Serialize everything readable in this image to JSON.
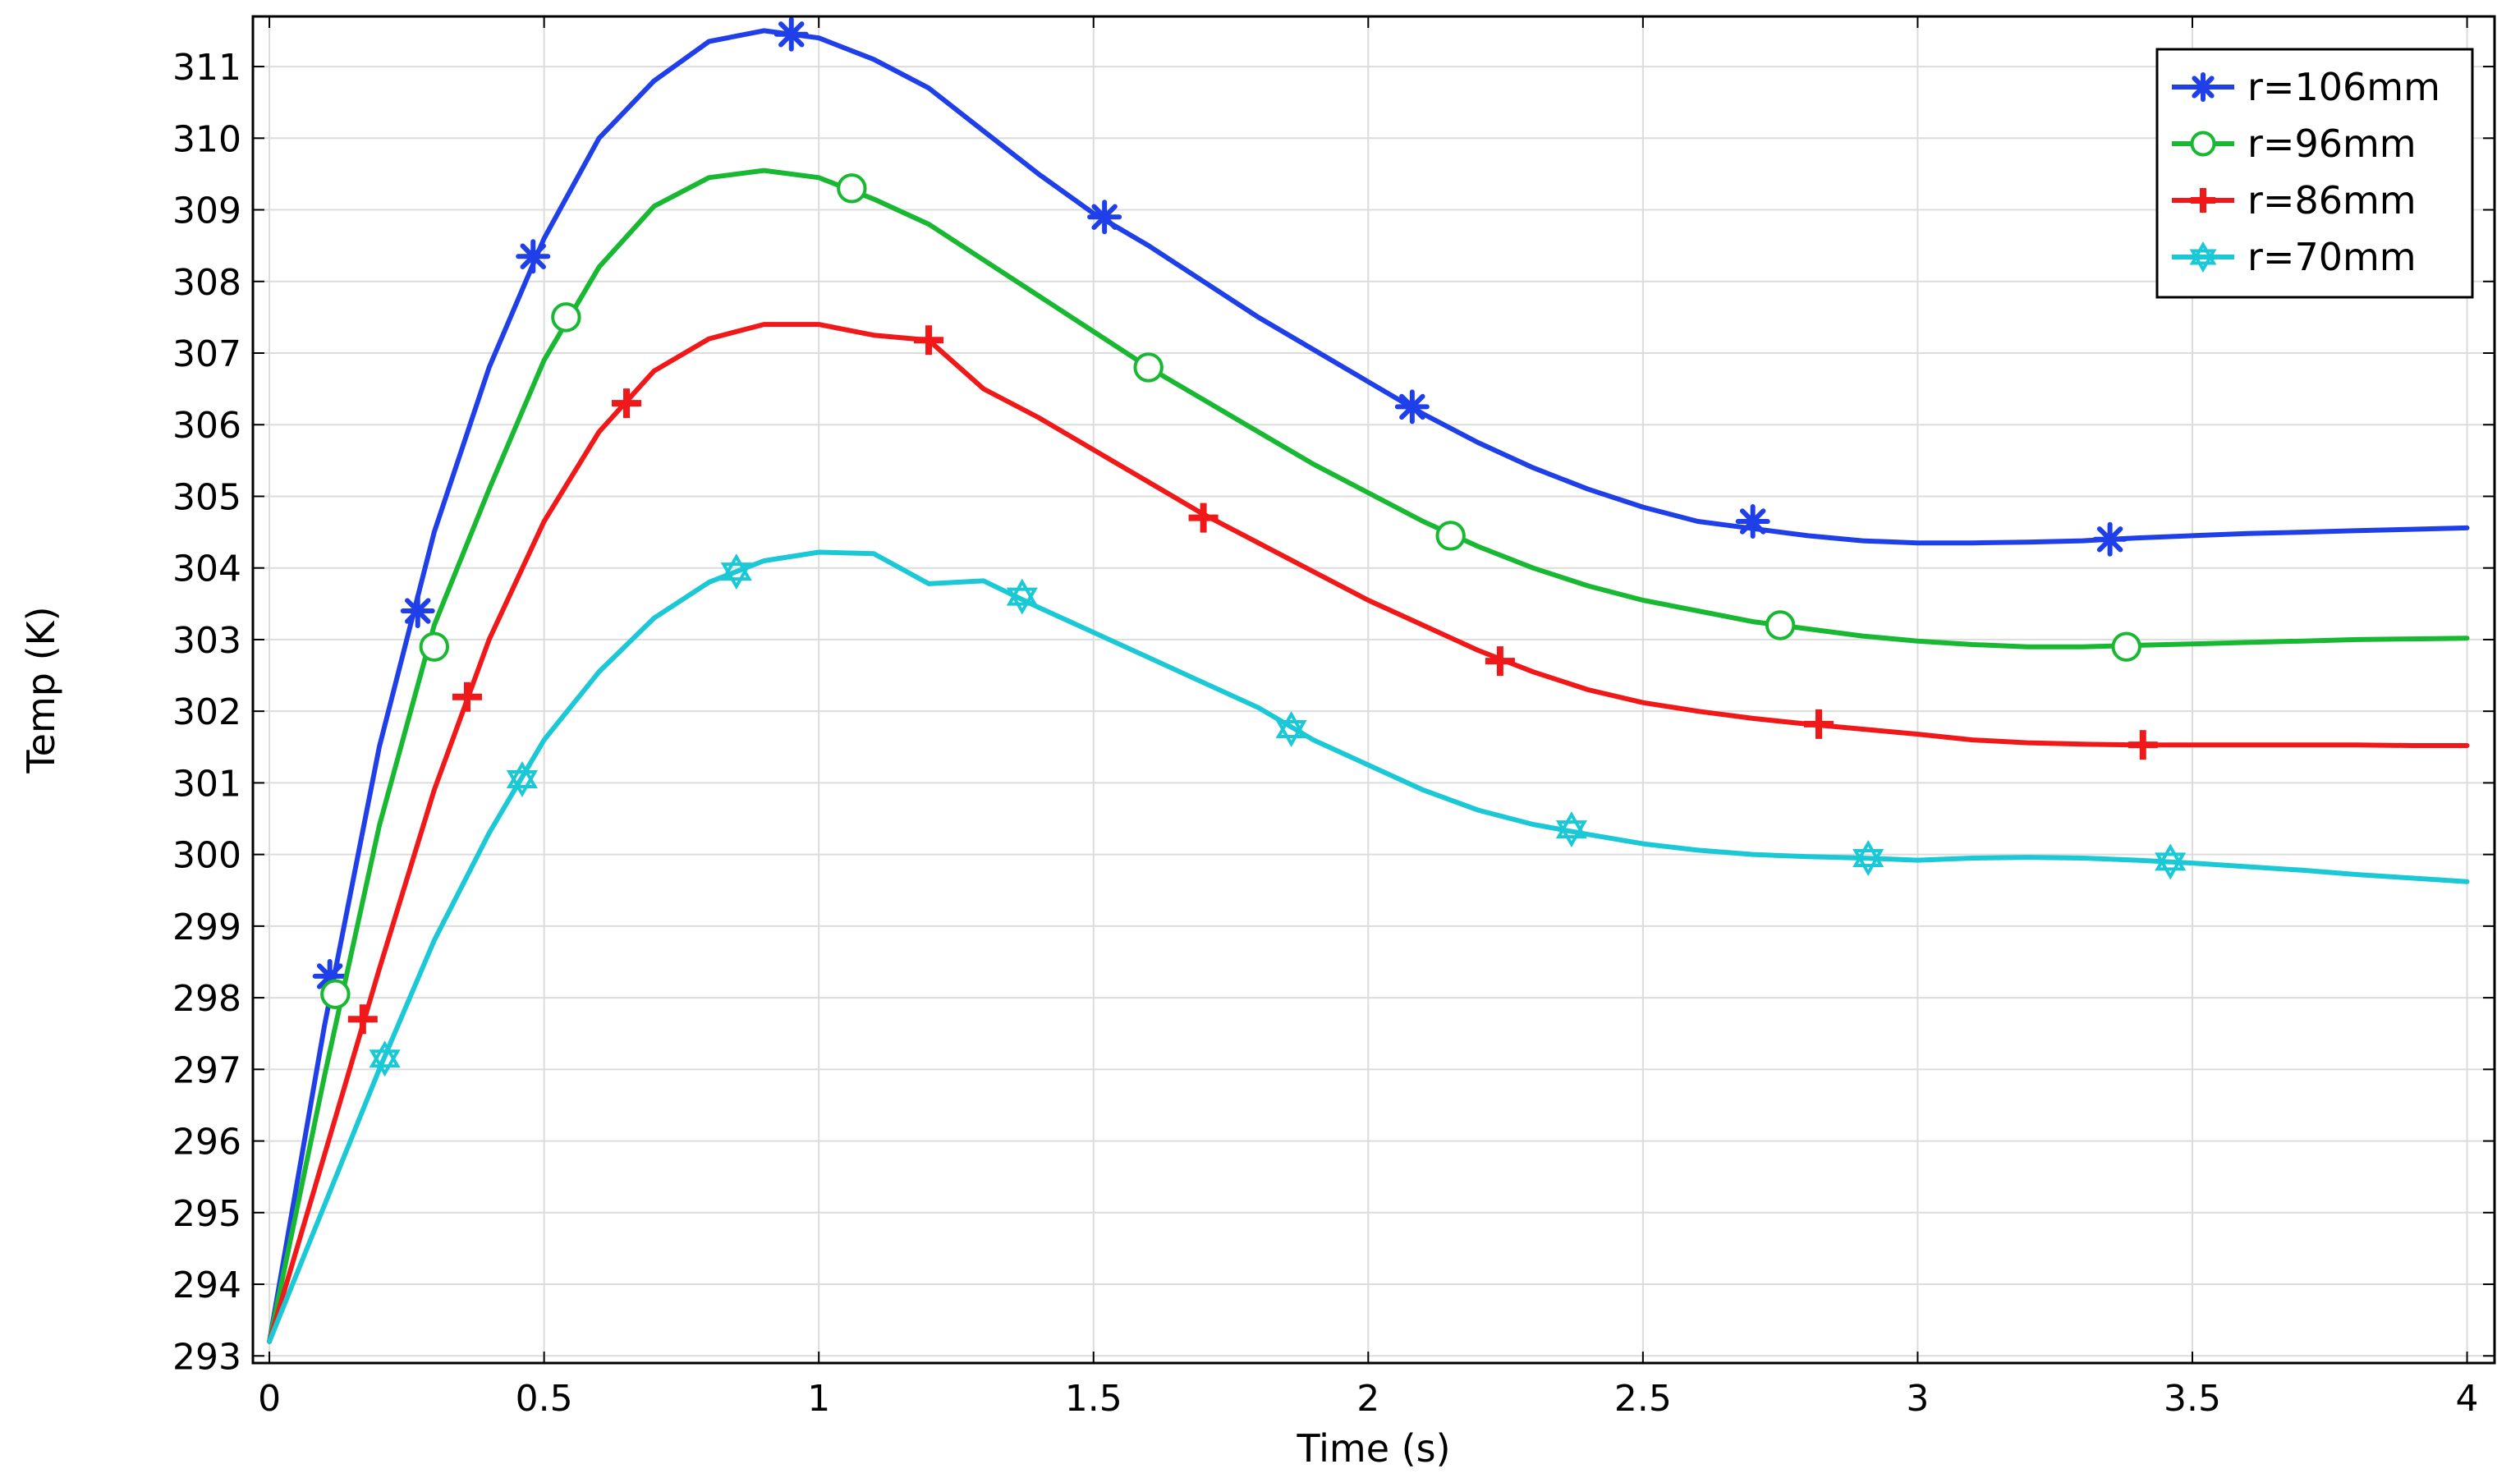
{
  "chart_data": {
    "type": "line",
    "title": "",
    "xlabel": "Time (s)",
    "ylabel": "Temp (K)",
    "xlim": [
      -0.03,
      4.05
    ],
    "ylim": [
      292.9,
      311.7
    ],
    "xticks": [
      0,
      0.5,
      1,
      1.5,
      2,
      2.5,
      3,
      3.5,
      4
    ],
    "xtick_labels": [
      "0",
      "0.5",
      "1",
      "1.5",
      "2",
      "2.5",
      "3",
      "3.5",
      "4"
    ],
    "yticks": [
      293,
      294,
      295,
      296,
      297,
      298,
      299,
      300,
      301,
      302,
      303,
      304,
      305,
      306,
      307,
      308,
      309,
      310,
      311
    ],
    "ytick_labels": [
      "293",
      "294",
      "295",
      "296",
      "297",
      "298",
      "299",
      "300",
      "301",
      "302",
      "303",
      "304",
      "305",
      "306",
      "307",
      "308",
      "309",
      "310",
      "311"
    ],
    "grid": true,
    "legend_position": "top-right",
    "series": [
      {
        "name": "r=106mm",
        "color": "#1f3fe8",
        "marker": "asterisk",
        "points": [
          [
            0,
            293.2
          ],
          [
            0.1,
            297.6
          ],
          [
            0.2,
            301.5
          ],
          [
            0.3,
            304.5
          ],
          [
            0.4,
            306.8
          ],
          [
            0.5,
            308.6
          ],
          [
            0.6,
            310.0
          ],
          [
            0.7,
            310.8
          ],
          [
            0.8,
            311.35
          ],
          [
            0.9,
            311.5
          ],
          [
            1.0,
            311.4
          ],
          [
            1.1,
            311.1
          ],
          [
            1.2,
            310.7
          ],
          [
            1.3,
            310.1
          ],
          [
            1.4,
            309.5
          ],
          [
            1.5,
            308.95
          ],
          [
            1.6,
            308.5
          ],
          [
            1.7,
            308.0
          ],
          [
            1.8,
            307.5
          ],
          [
            1.9,
            307.05
          ],
          [
            2.0,
            306.6
          ],
          [
            2.1,
            306.15
          ],
          [
            2.2,
            305.75
          ],
          [
            2.3,
            305.4
          ],
          [
            2.4,
            305.1
          ],
          [
            2.5,
            304.85
          ],
          [
            2.6,
            304.65
          ],
          [
            2.7,
            304.55
          ],
          [
            2.8,
            304.45
          ],
          [
            2.9,
            304.38
          ],
          [
            3.0,
            304.35
          ],
          [
            3.1,
            304.35
          ],
          [
            3.2,
            304.36
          ],
          [
            3.3,
            304.38
          ],
          [
            3.4,
            304.42
          ],
          [
            3.5,
            304.45
          ],
          [
            3.6,
            304.48
          ],
          [
            3.7,
            304.5
          ],
          [
            3.8,
            304.52
          ],
          [
            3.9,
            304.54
          ],
          [
            4.0,
            304.56
          ]
        ],
        "markers": [
          [
            0.11,
            298.3
          ],
          [
            0.27,
            303.4
          ],
          [
            0.48,
            308.35
          ],
          [
            0.95,
            311.45
          ],
          [
            1.52,
            308.9
          ],
          [
            2.08,
            306.25
          ],
          [
            2.7,
            304.65
          ],
          [
            3.35,
            304.4
          ]
        ]
      },
      {
        "name": "r=96mm",
        "color": "#19b832",
        "marker": "circle",
        "points": [
          [
            0,
            293.2
          ],
          [
            0.1,
            296.9
          ],
          [
            0.2,
            300.4
          ],
          [
            0.3,
            303.2
          ],
          [
            0.4,
            305.1
          ],
          [
            0.5,
            306.9
          ],
          [
            0.6,
            308.2
          ],
          [
            0.7,
            309.05
          ],
          [
            0.8,
            309.45
          ],
          [
            0.9,
            309.55
          ],
          [
            1.0,
            309.45
          ],
          [
            1.1,
            309.15
          ],
          [
            1.2,
            308.8
          ],
          [
            1.3,
            308.3
          ],
          [
            1.4,
            307.8
          ],
          [
            1.5,
            307.3
          ],
          [
            1.6,
            306.8
          ],
          [
            1.7,
            306.35
          ],
          [
            1.8,
            305.9
          ],
          [
            1.9,
            305.45
          ],
          [
            2.0,
            305.05
          ],
          [
            2.1,
            304.65
          ],
          [
            2.2,
            304.3
          ],
          [
            2.3,
            304.0
          ],
          [
            2.4,
            303.75
          ],
          [
            2.5,
            303.55
          ],
          [
            2.6,
            303.4
          ],
          [
            2.7,
            303.25
          ],
          [
            2.8,
            303.15
          ],
          [
            2.9,
            303.05
          ],
          [
            3.0,
            302.98
          ],
          [
            3.1,
            302.93
          ],
          [
            3.2,
            302.9
          ],
          [
            3.3,
            302.9
          ],
          [
            3.4,
            302.92
          ],
          [
            3.5,
            302.94
          ],
          [
            3.6,
            302.96
          ],
          [
            3.7,
            302.98
          ],
          [
            3.8,
            303.0
          ],
          [
            3.9,
            303.01
          ],
          [
            4.0,
            303.02
          ]
        ],
        "markers": [
          [
            0.12,
            298.05
          ],
          [
            0.3,
            302.9
          ],
          [
            0.54,
            307.5
          ],
          [
            1.06,
            309.3
          ],
          [
            1.6,
            306.8
          ],
          [
            2.15,
            304.45
          ],
          [
            2.75,
            303.2
          ],
          [
            3.38,
            302.9
          ]
        ]
      },
      {
        "name": "r=86mm",
        "color": "#f01818",
        "marker": "plus",
        "points": [
          [
            0,
            293.2
          ],
          [
            0.1,
            295.8
          ],
          [
            0.2,
            298.4
          ],
          [
            0.3,
            300.9
          ],
          [
            0.4,
            303.0
          ],
          [
            0.5,
            304.65
          ],
          [
            0.6,
            305.9
          ],
          [
            0.7,
            306.75
          ],
          [
            0.8,
            307.2
          ],
          [
            0.9,
            307.4
          ],
          [
            1.0,
            307.4
          ],
          [
            1.1,
            307.25
          ],
          [
            1.2,
            307.18
          ],
          [
            1.3,
            306.5
          ],
          [
            1.4,
            306.1
          ],
          [
            1.5,
            305.65
          ],
          [
            1.6,
            305.2
          ],
          [
            1.7,
            304.75
          ],
          [
            1.8,
            304.35
          ],
          [
            1.9,
            303.95
          ],
          [
            2.0,
            303.55
          ],
          [
            2.1,
            303.2
          ],
          [
            2.2,
            302.85
          ],
          [
            2.3,
            302.55
          ],
          [
            2.4,
            302.3
          ],
          [
            2.5,
            302.12
          ],
          [
            2.6,
            302.0
          ],
          [
            2.7,
            301.9
          ],
          [
            2.8,
            301.82
          ],
          [
            2.9,
            301.75
          ],
          [
            3.0,
            301.68
          ],
          [
            3.1,
            301.6
          ],
          [
            3.2,
            301.56
          ],
          [
            3.3,
            301.54
          ],
          [
            3.4,
            301.53
          ],
          [
            3.5,
            301.53
          ],
          [
            3.6,
            301.53
          ],
          [
            3.7,
            301.53
          ],
          [
            3.8,
            301.53
          ],
          [
            3.9,
            301.52
          ],
          [
            4.0,
            301.52
          ]
        ],
        "markers": [
          [
            0.17,
            297.7
          ],
          [
            0.36,
            302.2
          ],
          [
            0.65,
            306.3
          ],
          [
            1.2,
            307.18
          ],
          [
            1.7,
            304.7
          ],
          [
            2.24,
            302.7
          ],
          [
            2.82,
            301.82
          ],
          [
            3.41,
            301.53
          ]
        ]
      },
      {
        "name": "r=70mm",
        "color": "#1ac8d6",
        "marker": "hexagram",
        "points": [
          [
            0,
            293.2
          ],
          [
            0.1,
            295.1
          ],
          [
            0.2,
            297.0
          ],
          [
            0.3,
            298.8
          ],
          [
            0.4,
            300.3
          ],
          [
            0.5,
            301.6
          ],
          [
            0.6,
            302.55
          ],
          [
            0.7,
            303.3
          ],
          [
            0.8,
            303.8
          ],
          [
            0.9,
            304.1
          ],
          [
            1.0,
            304.22
          ],
          [
            1.1,
            304.2
          ],
          [
            1.2,
            303.78
          ],
          [
            1.3,
            303.82
          ],
          [
            1.4,
            303.45
          ],
          [
            1.5,
            303.1
          ],
          [
            1.6,
            302.75
          ],
          [
            1.7,
            302.4
          ],
          [
            1.8,
            302.05
          ],
          [
            1.9,
            301.6
          ],
          [
            2.0,
            301.25
          ],
          [
            2.1,
            300.9
          ],
          [
            2.2,
            300.62
          ],
          [
            2.3,
            300.42
          ],
          [
            2.4,
            300.28
          ],
          [
            2.5,
            300.15
          ],
          [
            2.6,
            300.06
          ],
          [
            2.7,
            300.0
          ],
          [
            2.8,
            299.97
          ],
          [
            2.9,
            299.95
          ],
          [
            3.0,
            299.92
          ],
          [
            3.1,
            299.95
          ],
          [
            3.2,
            299.96
          ],
          [
            3.3,
            299.95
          ],
          [
            3.4,
            299.92
          ],
          [
            3.5,
            299.88
          ],
          [
            3.6,
            299.83
          ],
          [
            3.7,
            299.78
          ],
          [
            3.8,
            299.72
          ],
          [
            3.9,
            299.67
          ],
          [
            4.0,
            299.62
          ]
        ],
        "markers": [
          [
            0.21,
            297.15
          ],
          [
            0.46,
            301.05
          ],
          [
            0.85,
            303.95
          ],
          [
            1.37,
            303.6
          ],
          [
            1.86,
            301.75
          ],
          [
            2.37,
            300.35
          ],
          [
            2.91,
            299.95
          ],
          [
            3.46,
            299.9
          ]
        ]
      }
    ]
  }
}
